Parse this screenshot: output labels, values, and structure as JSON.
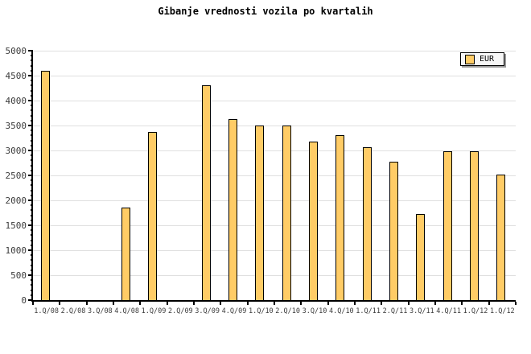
{
  "chart_data": {
    "type": "bar",
    "title": "Gibanje vrednosti vozila po kvartalih",
    "categories": [
      "1.Q/08",
      "2.Q/08",
      "3.Q/08",
      "4.Q/08",
      "1.Q/09",
      "2.Q/09",
      "3.Q/09",
      "4.Q/09",
      "1.Q/10",
      "2.Q/10",
      "3.Q/10",
      "4.Q/10",
      "1.Q/11",
      "2.Q/11",
      "3.Q/11",
      "4.Q/11",
      "1.Q/12",
      "1.Q/12"
    ],
    "values": [
      4600,
      0,
      0,
      1850,
      3370,
      0,
      4300,
      3630,
      3500,
      3500,
      3180,
      3300,
      3060,
      2780,
      1730,
      2990,
      2990,
      2520
    ],
    "xlabel": "",
    "ylabel": "",
    "ylim": [
      0,
      5000
    ],
    "y_major_step": 500,
    "y_minor_step": 100,
    "y_tick_labels": [
      "0",
      "500",
      "1000",
      "1500",
      "2000",
      "2500",
      "3000",
      "3500",
      "4000",
      "4500",
      "5000"
    ],
    "grid": "horizontal",
    "legend_position": "top-right",
    "legend": [
      {
        "label": "EUR",
        "color": "#FFCC66"
      }
    ],
    "colors": {
      "bar_fill": "#FFCC66",
      "bar_border": "#000000",
      "gridline": "#E0E0E0",
      "axis": "#000000",
      "tick_label": "#3B3B3B",
      "background": "#FFFFFF",
      "legend_shadow": "#999999"
    }
  }
}
